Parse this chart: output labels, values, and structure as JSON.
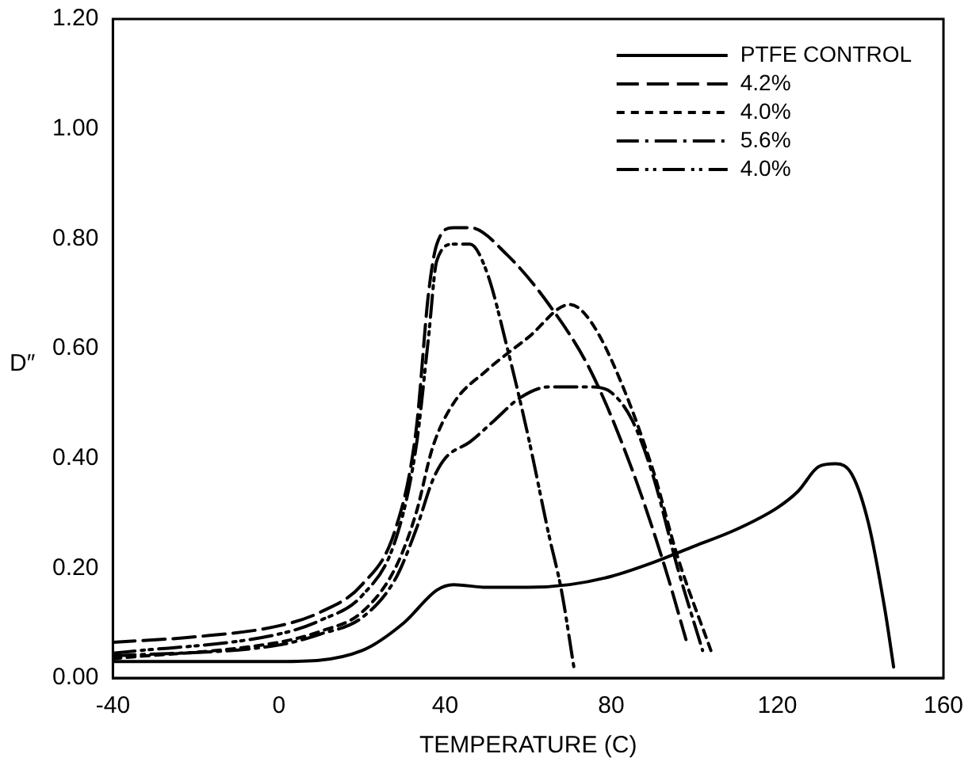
{
  "chart_data": {
    "type": "line",
    "xlabel": "TEMPERATURE (C)",
    "ylabel": "D″",
    "xlim": [
      -40,
      160
    ],
    "xticks": [
      -40,
      0,
      40,
      80,
      120,
      160
    ],
    "ylim": [
      0,
      1.2
    ],
    "yticks": [
      {
        "value": 0,
        "label": "0.00"
      },
      {
        "value": 0.2,
        "label": "0.20"
      },
      {
        "value": 0.4,
        "label": "0.40"
      },
      {
        "value": 0.6,
        "label": "0.60"
      },
      {
        "value": 0.8,
        "label": "0.80"
      },
      {
        "value": 1.0,
        "label": "1.00"
      },
      {
        "value": 1.2,
        "label": "1.20"
      }
    ],
    "grid": false,
    "legend": "top right",
    "marker": "none",
    "series": [
      {
        "name": "PTFE CONTROL",
        "color": "#000000",
        "line_style": "solid",
        "x": [
          -40,
          0,
          20,
          30,
          38,
          42,
          50,
          60,
          70,
          80,
          90,
          100,
          110,
          120,
          125,
          130,
          134,
          138,
          142,
          146,
          148
        ],
        "values": [
          0.03,
          0.03,
          0.05,
          0.1,
          0.16,
          0.17,
          0.165,
          0.165,
          0.17,
          0.185,
          0.21,
          0.24,
          0.27,
          0.31,
          0.34,
          0.385,
          0.39,
          0.37,
          0.28,
          0.12,
          0.02
        ]
      },
      {
        "name": "4.2%",
        "color": "#000000",
        "line_style": "dashed",
        "x": [
          -40,
          -20,
          0,
          10,
          20,
          28,
          33,
          36,
          38,
          42,
          46,
          55,
          65,
          75,
          85,
          93,
          98
        ],
        "values": [
          0.065,
          0.075,
          0.095,
          0.12,
          0.17,
          0.27,
          0.45,
          0.7,
          0.79,
          0.82,
          0.82,
          0.77,
          0.68,
          0.56,
          0.38,
          0.2,
          0.07
        ]
      },
      {
        "name": "4.0%",
        "color": "#000000",
        "line_style": "dotted",
        "x": [
          -40,
          0,
          10,
          20,
          28,
          33,
          37,
          42,
          50,
          60,
          70,
          74,
          80,
          90,
          96,
          104
        ],
        "values": [
          0.035,
          0.065,
          0.085,
          0.12,
          0.2,
          0.3,
          0.42,
          0.5,
          0.56,
          0.62,
          0.68,
          0.66,
          0.58,
          0.38,
          0.22,
          0.05
        ]
      },
      {
        "name": "5.6%",
        "color": "#000000",
        "line_style": "dashdot",
        "x": [
          -40,
          0,
          10,
          20,
          28,
          33,
          37,
          40,
          46,
          52,
          58,
          65,
          75,
          80,
          85,
          90,
          96,
          102
        ],
        "values": [
          0.04,
          0.06,
          0.08,
          0.11,
          0.18,
          0.27,
          0.36,
          0.4,
          0.43,
          0.47,
          0.51,
          0.53,
          0.53,
          0.52,
          0.47,
          0.37,
          0.2,
          0.05
        ]
      },
      {
        "name": "4.0%",
        "color": "#000000",
        "line_style": "dashdotdot",
        "x": [
          -40,
          0,
          10,
          20,
          28,
          33,
          36,
          38,
          42,
          46,
          50,
          55,
          60,
          65,
          68,
          71
        ],
        "values": [
          0.045,
          0.08,
          0.105,
          0.15,
          0.25,
          0.42,
          0.62,
          0.76,
          0.79,
          0.79,
          0.74,
          0.6,
          0.44,
          0.26,
          0.16,
          0.02
        ]
      }
    ]
  }
}
